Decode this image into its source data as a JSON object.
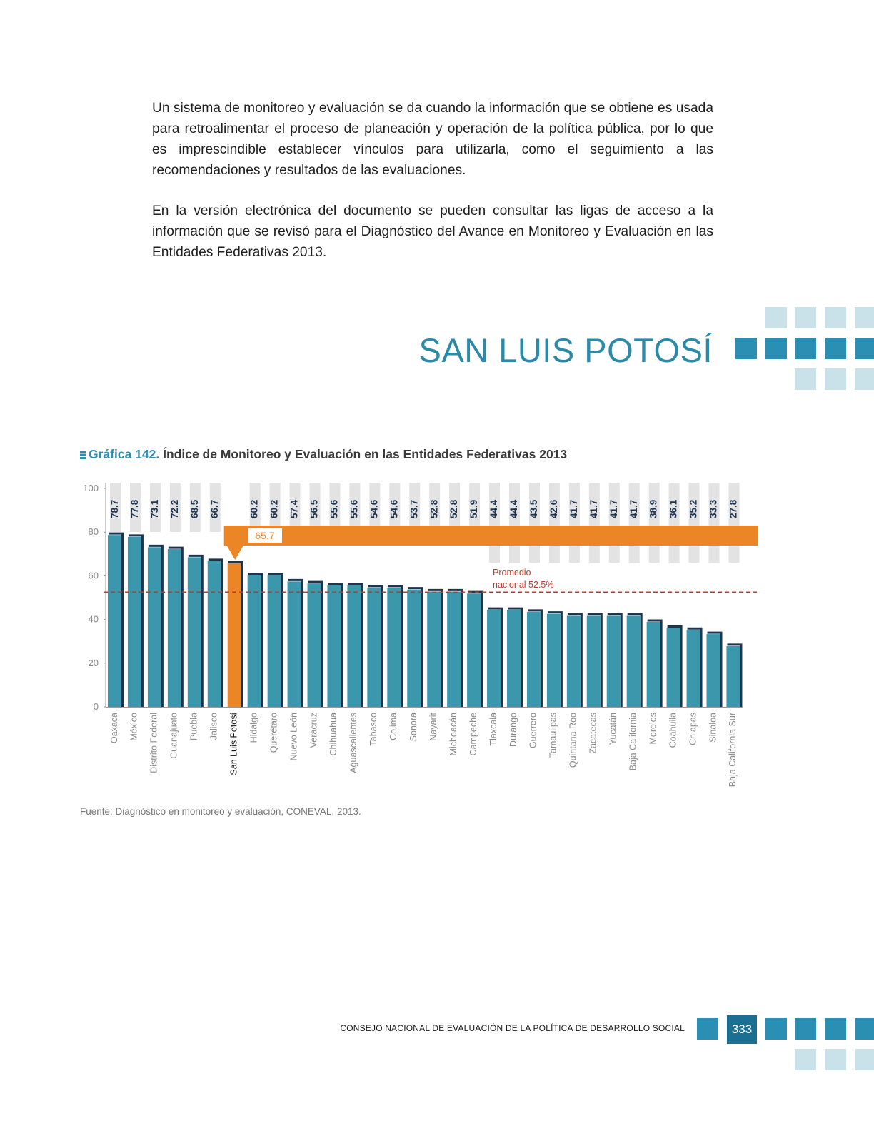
{
  "body": {
    "paragraph1": "Un sistema de monitoreo y evaluación se da cuando la información que se obtiene es usada para retroalimentar el proceso de planeación y operación de la política pública, por lo que es imprescindible establecer vínculos para utilizarla, como el seguimiento a las recomendaciones y resultados de las evaluaciones.",
    "paragraph2": "En la versión electrónica del documento se pueden consultar las ligas de acceso a la información que se revisó para el Diagnóstico del Avance en Monitoreo y Evaluación en las Entidades Federativas 2013."
  },
  "section_title": "SAN LUIS POTOSÍ",
  "chart_label": {
    "number": "Gráfica 142.",
    "title": "Índice de Monitoreo y Evaluación en las Entidades Federativas 2013"
  },
  "chart_data": {
    "type": "bar",
    "categories": [
      "Oaxaca",
      "México",
      "Distrito Federal",
      "Guanajuato",
      "Puebla",
      "Jalisco",
      "San Luis Potosí",
      "Hidalgo",
      "Querétaro",
      "Nuevo León",
      "Veracruz",
      "Chihuahua",
      "Aguascalientes",
      "Tabasco",
      "Colima",
      "Sonora",
      "Nayarit",
      "Michoacán",
      "Campeche",
      "Tlaxcala",
      "Durango",
      "Guerrero",
      "Tamaulipas",
      "Quintana Roo",
      "Zacatecas",
      "Yucatán",
      "Baja California",
      "Morelos",
      "Coahuila",
      "Chiapas",
      "Sinaloa",
      "Baja California Sur"
    ],
    "values": [
      78.7,
      77.8,
      73.1,
      72.2,
      68.5,
      66.7,
      65.7,
      60.2,
      60.2,
      57.4,
      56.5,
      55.6,
      55.6,
      54.6,
      54.6,
      53.7,
      52.8,
      52.8,
      51.9,
      44.4,
      44.4,
      43.5,
      42.6,
      41.7,
      41.7,
      41.7,
      41.7,
      38.9,
      36.1,
      35.2,
      33.3,
      27.8
    ],
    "value_labels": [
      "78.7",
      "77.8",
      "73.1",
      "72.2",
      "68.5",
      "66.7",
      "",
      "60.2",
      "60.2",
      "57.4",
      "56.5",
      "55.6",
      "55.6",
      "54.6",
      "54.6",
      "53.7",
      "52.8",
      "52.8",
      "51.9",
      "44.4",
      "44.4",
      "43.5",
      "42.6",
      "41.7",
      "41.7",
      "41.7",
      "41.7",
      "38.9",
      "36.1",
      "35.2",
      "33.3",
      "27.8"
    ],
    "highlight": {
      "category": "San Luis Potosí",
      "value": 65.7,
      "label": "65.7",
      "color": "#ec8526"
    },
    "reference_line": {
      "value": 52.5,
      "label_line1": "Promedio",
      "label_line2": "nacional 52.5%",
      "color": "#c0392b"
    },
    "yticks": [
      "0",
      "20",
      "40",
      "60",
      "80",
      "100"
    ],
    "ylim": [
      0,
      100
    ],
    "bar_color": "#3a97ac",
    "bar_shadow_color": "#1e3550",
    "grid": false
  },
  "source": "Fuente: Diagnóstico en monitoreo y evaluación, CONEVAL, 2013.",
  "footer": {
    "org": "CONSEJO NACIONAL DE EVALUACIÓN DE LA POLÍTICA DE DESARROLLO SOCIAL",
    "page": "333"
  }
}
